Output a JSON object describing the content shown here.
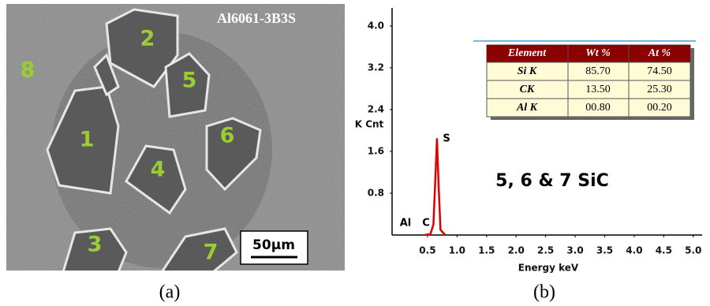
{
  "panel_a": {
    "title": "Al6061-3B3S",
    "labels": [
      "2",
      "8",
      "5",
      "1",
      "6",
      "4",
      "3",
      "7"
    ],
    "scale_bar": "50µm",
    "caption": "(a)"
  },
  "chart_data": {
    "type": "line",
    "x_label": "Energy keV",
    "y_label": "K Cnt",
    "xlim": [
      -0.1,
      5.15
    ],
    "ylim": [
      0,
      4.3
    ],
    "xticks": [
      0.5,
      {
        "value": 1,
        "label": "1.0"
      },
      1.5,
      {
        "value": 2,
        "label": "2.0"
      },
      2.5,
      {
        "value": 3,
        "label": "3.0"
      },
      3.5,
      {
        "value": 4,
        "label": "4.0"
      },
      4.5,
      {
        "value": 5,
        "label": "5.0"
      }
    ],
    "yticks": [
      0.8,
      1.6,
      2.4,
      3.2,
      {
        "value": 4,
        "label": "4.0"
      }
    ],
    "x": [
      0.45,
      0.55,
      0.6,
      0.63,
      0.66,
      0.69,
      0.72,
      0.8
    ],
    "values": [
      0,
      0.02,
      0.2,
      1.0,
      1.85,
      0.9,
      0.1,
      0
    ],
    "color": "#e00000",
    "peak_labels": [
      "Al",
      "C",
      "S"
    ],
    "note": "5, 6 & 7 SiC",
    "table": {
      "header": [
        "Element",
        "Wt %",
        "At %"
      ],
      "rows": [
        [
          "Si K",
          "85.70",
          "74.50"
        ],
        [
          "CK",
          "13.50",
          "25.30"
        ],
        [
          "Al K",
          "00.80",
          "00.20"
        ]
      ]
    },
    "caption": "(b)"
  }
}
